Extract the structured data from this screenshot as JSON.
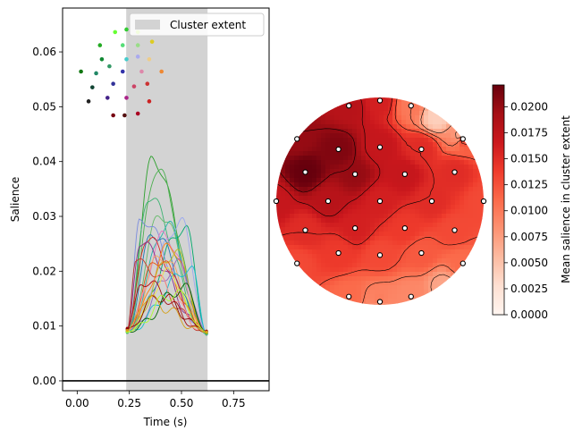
{
  "chart_data": [
    {
      "type": "line",
      "xlabel": "Time (s)",
      "ylabel": "Salience",
      "xlim": [
        -0.07,
        0.92
      ],
      "ylim": [
        -0.0018,
        0.068
      ],
      "xticks": [
        0.0,
        0.25,
        0.5,
        0.75
      ],
      "xtick_labels": [
        "0.00",
        "0.25",
        "0.50",
        "0.75"
      ],
      "yticks": [
        0.0,
        0.01,
        0.02,
        0.03,
        0.04,
        0.05,
        0.06
      ],
      "ytick_labels": [
        "0.00",
        "0.01",
        "0.02",
        "0.03",
        "0.04",
        "0.05",
        "0.06"
      ],
      "cluster_extent": [
        0.235,
        0.625
      ],
      "zero_line": 0.0,
      "legend": {
        "label": "Cluster extent",
        "color": "#d3d3d3",
        "position": "upper right"
      },
      "series": [
        {
          "color": "#2ca02c",
          "peak_t": 0.36,
          "peak": 0.0405,
          "start": 0.0095,
          "end": 0.009
        },
        {
          "color": "#4caf50",
          "peak_t": 0.38,
          "peak": 0.0385,
          "start": 0.009,
          "end": 0.0085
        },
        {
          "color": "#3cb371",
          "peak_t": 0.34,
          "peak": 0.0335,
          "start": 0.009,
          "end": 0.0088
        },
        {
          "color": "#66bb6a",
          "peak_t": 0.4,
          "peak": 0.0305,
          "start": 0.0088,
          "end": 0.0086
        },
        {
          "color": "#00a86b",
          "peak_t": 0.52,
          "peak": 0.028,
          "start": 0.009,
          "end": 0.0087
        },
        {
          "color": "#9aa8f0",
          "peak_t": 0.5,
          "peak": 0.029,
          "start": 0.009,
          "end": 0.0086
        },
        {
          "color": "#7b8cde",
          "peak_t": 0.3,
          "peak": 0.0295,
          "start": 0.0092,
          "end": 0.0088
        },
        {
          "color": "#20b2aa",
          "peak_t": 0.43,
          "peak": 0.0285,
          "start": 0.0089,
          "end": 0.0087
        },
        {
          "color": "#1f77b4",
          "peak_t": 0.36,
          "peak": 0.027,
          "start": 0.009,
          "end": 0.0088
        },
        {
          "color": "#e377c2",
          "peak_t": 0.42,
          "peak": 0.0265,
          "start": 0.0092,
          "end": 0.0089
        },
        {
          "color": "#d62728",
          "peak_t": 0.33,
          "peak": 0.0258,
          "start": 0.0095,
          "end": 0.009
        },
        {
          "color": "#8c2d8c",
          "peak_t": 0.3,
          "peak": 0.025,
          "start": 0.0094,
          "end": 0.009
        },
        {
          "color": "#ff7f0e",
          "peak_t": 0.45,
          "peak": 0.0245,
          "start": 0.0091,
          "end": 0.0089
        },
        {
          "color": "#bcbd22",
          "peak_t": 0.47,
          "peak": 0.0235,
          "start": 0.009,
          "end": 0.0088
        },
        {
          "color": "#f4a460",
          "peak_t": 0.4,
          "peak": 0.0228,
          "start": 0.009,
          "end": 0.0089
        },
        {
          "color": "#e6550d",
          "peak_t": 0.38,
          "peak": 0.0222,
          "start": 0.0091,
          "end": 0.0089
        },
        {
          "color": "#c0392b",
          "peak_t": 0.28,
          "peak": 0.0218,
          "start": 0.0093,
          "end": 0.009
        },
        {
          "color": "#9467bd",
          "peak_t": 0.49,
          "peak": 0.0212,
          "start": 0.009,
          "end": 0.0088
        },
        {
          "color": "#17becf",
          "peak_t": 0.55,
          "peak": 0.0205,
          "start": 0.009,
          "end": 0.0087
        },
        {
          "color": "#f0e442",
          "peak_t": 0.44,
          "peak": 0.0195,
          "start": 0.009,
          "end": 0.0088
        },
        {
          "color": "#ff9896",
          "peak_t": 0.36,
          "peak": 0.0188,
          "start": 0.0092,
          "end": 0.0089
        },
        {
          "color": "#a50f15",
          "peak_t": 0.31,
          "peak": 0.018,
          "start": 0.0096,
          "end": 0.0091
        },
        {
          "color": "#8b0000",
          "peak_t": 0.39,
          "peak": 0.0155,
          "start": 0.0095,
          "end": 0.009
        },
        {
          "color": "#006400",
          "peak_t": 0.52,
          "peak": 0.017,
          "start": 0.009,
          "end": 0.0087
        },
        {
          "color": "#adff2f",
          "peak_t": 0.47,
          "peak": 0.016,
          "start": 0.009,
          "end": 0.0088
        },
        {
          "color": "#d4a017",
          "peak_t": 0.33,
          "peak": 0.0148,
          "start": 0.0092,
          "end": 0.0089
        }
      ],
      "inset_sensors": [
        {
          "x": 0.46,
          "y": 0.95,
          "c": "#66ff33"
        },
        {
          "x": 0.58,
          "y": 0.98,
          "c": "#33cc33"
        },
        {
          "x": 0.7,
          "y": 0.95,
          "c": "#aaee22"
        },
        {
          "x": 0.3,
          "y": 0.8,
          "c": "#22aa22"
        },
        {
          "x": 0.54,
          "y": 0.8,
          "c": "#55dd77"
        },
        {
          "x": 0.7,
          "y": 0.8,
          "c": "#99dd88"
        },
        {
          "x": 0.85,
          "y": 0.84,
          "c": "#ddcc22"
        },
        {
          "x": 0.32,
          "y": 0.64,
          "c": "#118833"
        },
        {
          "x": 0.4,
          "y": 0.56,
          "c": "#339966"
        },
        {
          "x": 0.58,
          "y": 0.64,
          "c": "#44cccc"
        },
        {
          "x": 0.7,
          "y": 0.67,
          "c": "#aaaaee"
        },
        {
          "x": 0.82,
          "y": 0.64,
          "c": "#eecc88"
        },
        {
          "x": 0.1,
          "y": 0.5,
          "c": "#117711"
        },
        {
          "x": 0.26,
          "y": 0.48,
          "c": "#228866"
        },
        {
          "x": 0.54,
          "y": 0.5,
          "c": "#3333aa"
        },
        {
          "x": 0.74,
          "y": 0.5,
          "c": "#dd88aa"
        },
        {
          "x": 0.95,
          "y": 0.5,
          "c": "#ee8833"
        },
        {
          "x": 0.22,
          "y": 0.32,
          "c": "#114433"
        },
        {
          "x": 0.44,
          "y": 0.36,
          "c": "#333399"
        },
        {
          "x": 0.66,
          "y": 0.33,
          "c": "#cc4466"
        },
        {
          "x": 0.8,
          "y": 0.36,
          "c": "#cc3333"
        },
        {
          "x": 0.18,
          "y": 0.16,
          "c": "#222222"
        },
        {
          "x": 0.38,
          "y": 0.2,
          "c": "#442288"
        },
        {
          "x": 0.58,
          "y": 0.2,
          "c": "#aa2288"
        },
        {
          "x": 0.82,
          "y": 0.16,
          "c": "#cc2222"
        },
        {
          "x": 0.44,
          "y": 0.0,
          "c": "#770011"
        },
        {
          "x": 0.56,
          "y": 0.0,
          "c": "#551111"
        },
        {
          "x": 0.7,
          "y": 0.02,
          "c": "#aa0022"
        }
      ]
    },
    {
      "type": "heatmap",
      "subtype": "topomap",
      "colormap": "Reds",
      "colorbar": {
        "label": "Mean salience in cluster extent",
        "min": 0.0,
        "max": 0.0221,
        "ticks": [
          0.0,
          0.0025,
          0.005,
          0.0075,
          0.01,
          0.0125,
          0.015,
          0.0175,
          0.02
        ],
        "tick_labels": [
          "0.0000",
          "0.0025",
          "0.0050",
          "0.0075",
          "0.0100",
          "0.0125",
          "0.0150",
          "0.0175",
          "0.0200"
        ]
      },
      "sensors": [
        {
          "x": -0.3,
          "y": 0.92,
          "v": 0.018
        },
        {
          "x": 0.0,
          "y": 0.97,
          "v": 0.016
        },
        {
          "x": 0.3,
          "y": 0.92,
          "v": 0.01
        },
        {
          "x": -0.8,
          "y": 0.6,
          "v": 0.02
        },
        {
          "x": -0.4,
          "y": 0.5,
          "v": 0.021
        },
        {
          "x": 0.0,
          "y": 0.52,
          "v": 0.017
        },
        {
          "x": 0.4,
          "y": 0.5,
          "v": 0.015
        },
        {
          "x": 0.8,
          "y": 0.6,
          "v": 0.014
        },
        {
          "x": -0.72,
          "y": 0.28,
          "v": 0.0221
        },
        {
          "x": -0.24,
          "y": 0.26,
          "v": 0.02
        },
        {
          "x": 0.24,
          "y": 0.26,
          "v": 0.017
        },
        {
          "x": 0.72,
          "y": 0.28,
          "v": 0.015
        },
        {
          "x": -1.0,
          "y": 0.0,
          "v": 0.017
        },
        {
          "x": -0.5,
          "y": 0.0,
          "v": 0.018
        },
        {
          "x": 0.0,
          "y": 0.0,
          "v": 0.016
        },
        {
          "x": 0.5,
          "y": 0.0,
          "v": 0.015
        },
        {
          "x": 1.0,
          "y": 0.0,
          "v": 0.013
        },
        {
          "x": -0.72,
          "y": -0.28,
          "v": 0.015
        },
        {
          "x": -0.24,
          "y": -0.26,
          "v": 0.016
        },
        {
          "x": 0.24,
          "y": -0.26,
          "v": 0.014
        },
        {
          "x": 0.72,
          "y": -0.28,
          "v": 0.013
        },
        {
          "x": -0.4,
          "y": -0.5,
          "v": 0.014
        },
        {
          "x": 0.0,
          "y": -0.52,
          "v": 0.013
        },
        {
          "x": 0.4,
          "y": -0.5,
          "v": 0.012
        },
        {
          "x": -0.8,
          "y": -0.6,
          "v": 0.013
        },
        {
          "x": 0.8,
          "y": -0.6,
          "v": 0.011
        },
        {
          "x": -0.3,
          "y": -0.92,
          "v": 0.011
        },
        {
          "x": 0.0,
          "y": -0.97,
          "v": 0.01
        },
        {
          "x": 0.3,
          "y": -0.92,
          "v": 0.009
        },
        {
          "x": 0.0,
          "y": -1.0,
          "v": 0.008
        },
        {
          "x": 0.62,
          "y": -0.82,
          "v": 0.007
        },
        {
          "x": 0.78,
          "y": 0.62,
          "v": 0.006
        },
        {
          "x": 0.55,
          "y": 0.82,
          "v": 0.004
        }
      ],
      "drawn_sensors": [
        {
          "x": -0.3,
          "y": 0.92
        },
        {
          "x": 0.0,
          "y": 0.97
        },
        {
          "x": 0.3,
          "y": 0.92
        },
        {
          "x": -0.8,
          "y": 0.6
        },
        {
          "x": -0.4,
          "y": 0.5
        },
        {
          "x": 0.0,
          "y": 0.52
        },
        {
          "x": 0.4,
          "y": 0.5
        },
        {
          "x": 0.8,
          "y": 0.6
        },
        {
          "x": -0.72,
          "y": 0.28
        },
        {
          "x": -0.24,
          "y": 0.26
        },
        {
          "x": 0.24,
          "y": 0.26
        },
        {
          "x": 0.72,
          "y": 0.28
        },
        {
          "x": -1.0,
          "y": 0.0
        },
        {
          "x": -0.5,
          "y": 0.0
        },
        {
          "x": 0.0,
          "y": 0.0
        },
        {
          "x": 0.5,
          "y": 0.0
        },
        {
          "x": 1.0,
          "y": 0.0
        },
        {
          "x": -0.72,
          "y": -0.28
        },
        {
          "x": -0.24,
          "y": -0.26
        },
        {
          "x": 0.24,
          "y": -0.26
        },
        {
          "x": 0.72,
          "y": -0.28
        },
        {
          "x": -0.4,
          "y": -0.5
        },
        {
          "x": 0.0,
          "y": -0.52
        },
        {
          "x": 0.4,
          "y": -0.5
        },
        {
          "x": -0.8,
          "y": -0.6
        },
        {
          "x": 0.8,
          "y": -0.6
        },
        {
          "x": -0.3,
          "y": -0.92
        },
        {
          "x": 0.0,
          "y": -0.97
        },
        {
          "x": 0.3,
          "y": -0.92
        }
      ]
    }
  ]
}
